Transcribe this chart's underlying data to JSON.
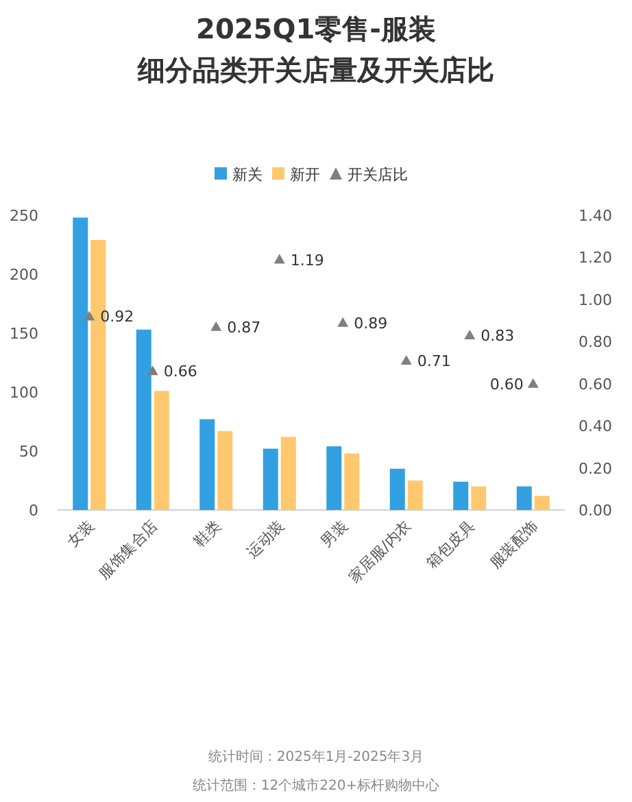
{
  "chart_data": {
    "type": "bar",
    "title": "2025Q1零售-服装",
    "subtitle": "细分品类开关店量及开关店比",
    "categories": [
      "女装",
      "服饰集合店",
      "鞋类",
      "运动装",
      "男装",
      "家居服/内衣",
      "箱包皮具",
      "服装配饰"
    ],
    "series": [
      {
        "name": "新关",
        "color": "#32a0e0",
        "values": [
          248,
          153,
          77,
          52,
          54,
          35,
          24,
          20
        ]
      },
      {
        "name": "新开",
        "color": "#ffc86e",
        "values": [
          229,
          101,
          67,
          62,
          48,
          25,
          20,
          12
        ]
      },
      {
        "name": "开关店比",
        "type": "scatter",
        "axis": "y2",
        "marker": "triangle",
        "color": "#7f7f7f",
        "values": [
          0.92,
          0.66,
          0.87,
          1.19,
          0.89,
          0.71,
          0.83,
          0.6
        ],
        "value_labels": [
          "0.92",
          "0.66",
          "0.87",
          "1.19",
          "0.89",
          "0.71",
          "0.83",
          "0.60"
        ]
      }
    ],
    "ylim": [
      0,
      250
    ],
    "yticks": [
      0,
      50,
      100,
      150,
      200,
      250
    ],
    "y2lim": [
      0,
      1.4
    ],
    "y2ticks": [
      {
        "value": 0,
        "label": "0.00"
      },
      {
        "value": 0.2,
        "label": "0.20"
      },
      {
        "value": 0.4,
        "label": "0.40"
      },
      {
        "value": 0.6,
        "label": "0.60"
      },
      {
        "value": 0.8,
        "label": "0.80"
      },
      {
        "value": 1,
        "label": "1.00"
      },
      {
        "value": 1.2,
        "label": "1.20"
      },
      {
        "value": 1.4,
        "label": "1.40"
      }
    ],
    "legend": "top",
    "annotations": [
      "统计时间：2025年1月-2025年3月",
      "统计范围：12个城市220+标杆购物中心"
    ]
  }
}
